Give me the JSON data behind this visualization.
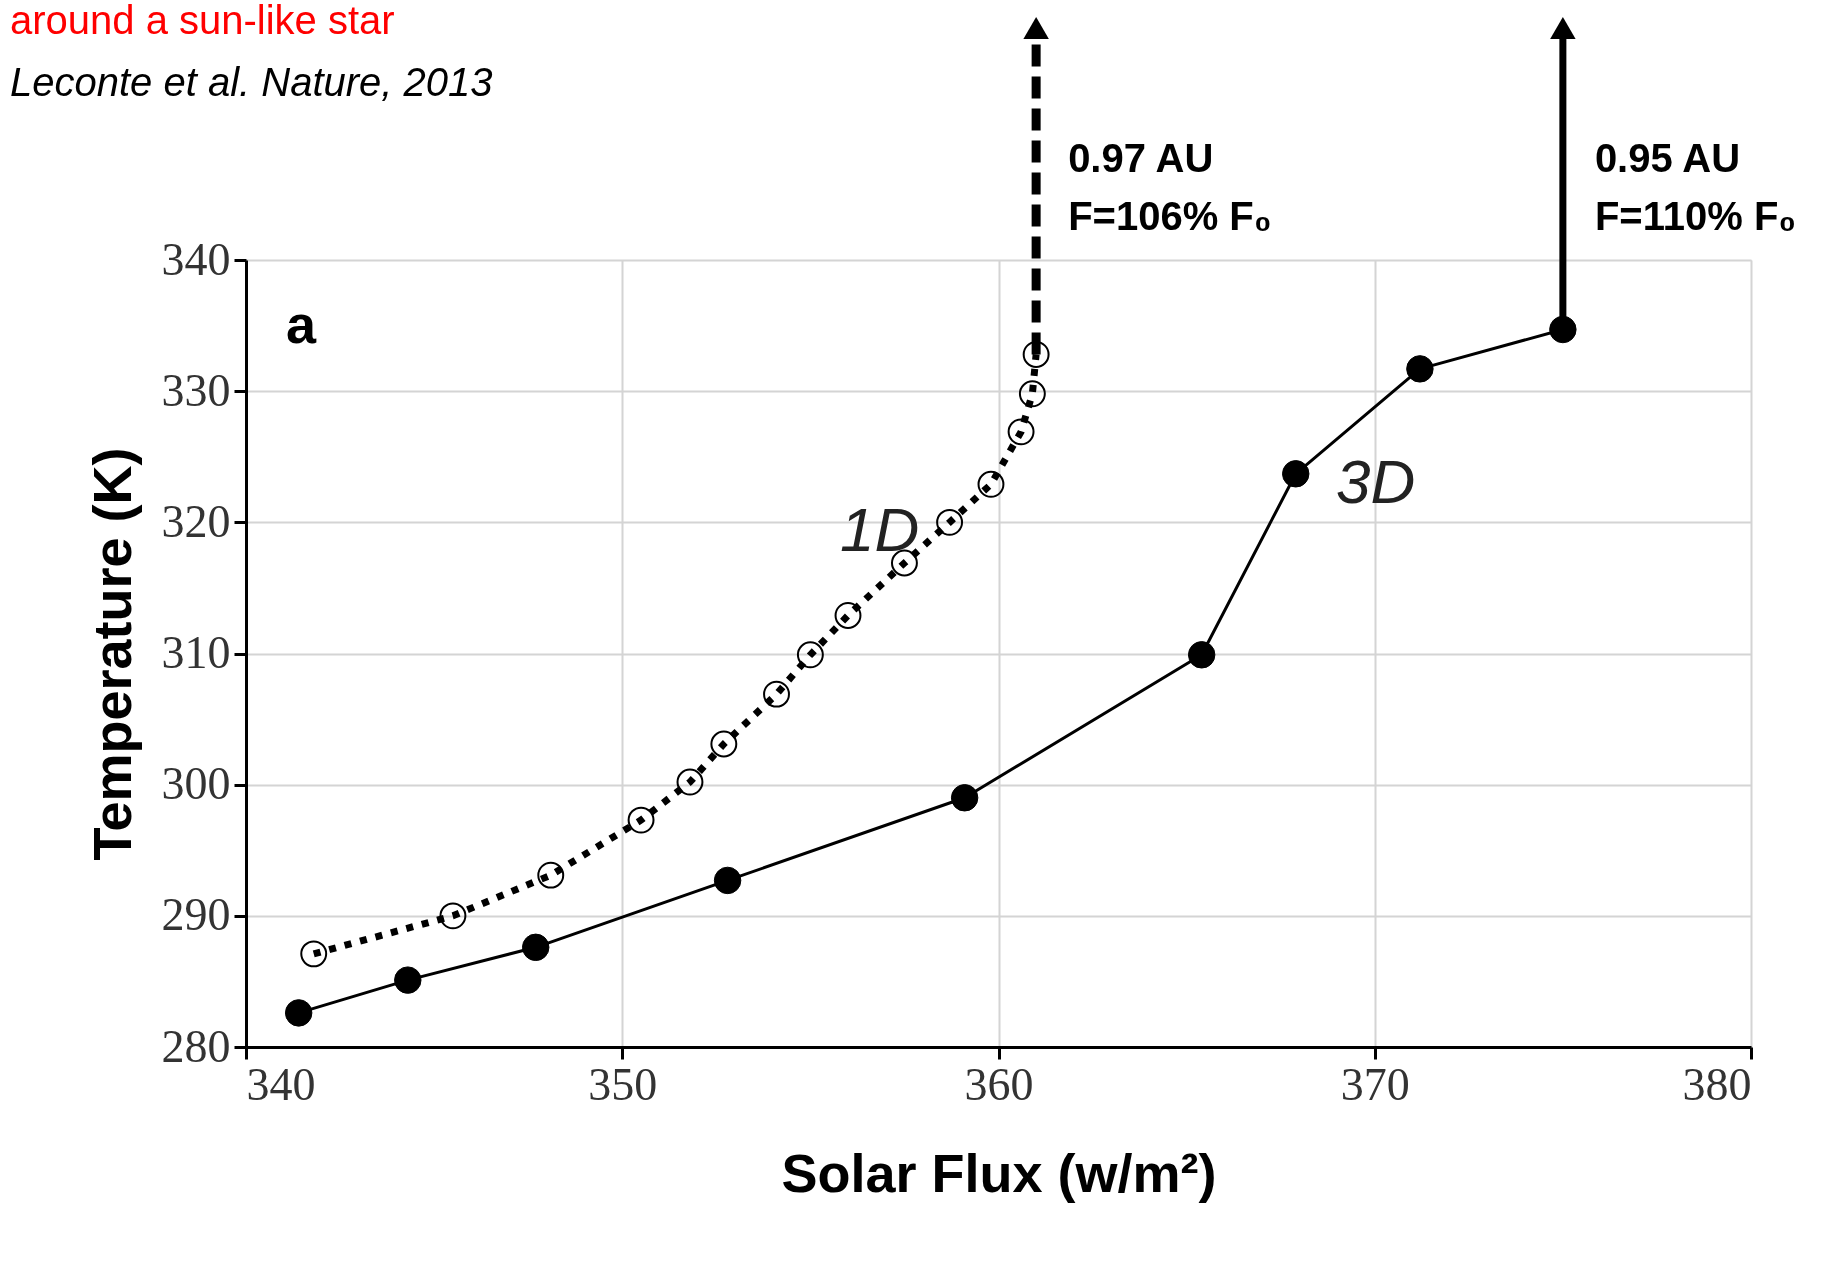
{
  "chart_data": {
    "type": "line",
    "title": "around  a sun-like star",
    "subtitle": "Leconte et al.  Nature, 2013",
    "xlabel": "Solar Flux (w/m²)",
    "ylabel": "Temperature (K)",
    "series": [
      {
        "name": "1D",
        "color": "#000000",
        "line_style": "dotted",
        "marker": "circle",
        "x": [
          341.8,
          345.5,
          348.1,
          350.5,
          351.8,
          352.7,
          354.1,
          355.0,
          356.0,
          357.5,
          358.7,
          359.8,
          360.6,
          360.9,
          361.0
        ],
        "values": [
          287.1,
          290.0,
          293.1,
          297.3,
          300.2,
          303.1,
          306.9,
          309.9,
          312.9,
          316.9,
          320.0,
          322.9,
          326.9,
          329.8,
          332.8
        ]
      },
      {
        "name": "3D",
        "color": "#000000",
        "line_style": "solid",
        "marker": "circle",
        "x": [
          341.4,
          344.3,
          347.7,
          352.8,
          359.1,
          365.4,
          367.9,
          371.2,
          375.0
        ],
        "values": [
          282.6,
          285.1,
          287.6,
          292.7,
          299.0,
          309.9,
          323.7,
          331.7,
          334.7
        ]
      }
    ],
    "annotations": [
      "a",
      "0.97 AU\nF=106% F₀",
      "0.95 AU\nF=110% F₀"
    ],
    "xlim": [
      340,
      380
    ],
    "xticks": [
      340,
      350,
      360,
      370,
      380
    ],
    "ylim": [
      280,
      340
    ],
    "yticks": [
      280,
      290,
      300,
      310,
      320,
      330,
      340
    ],
    "grid": true
  }
}
